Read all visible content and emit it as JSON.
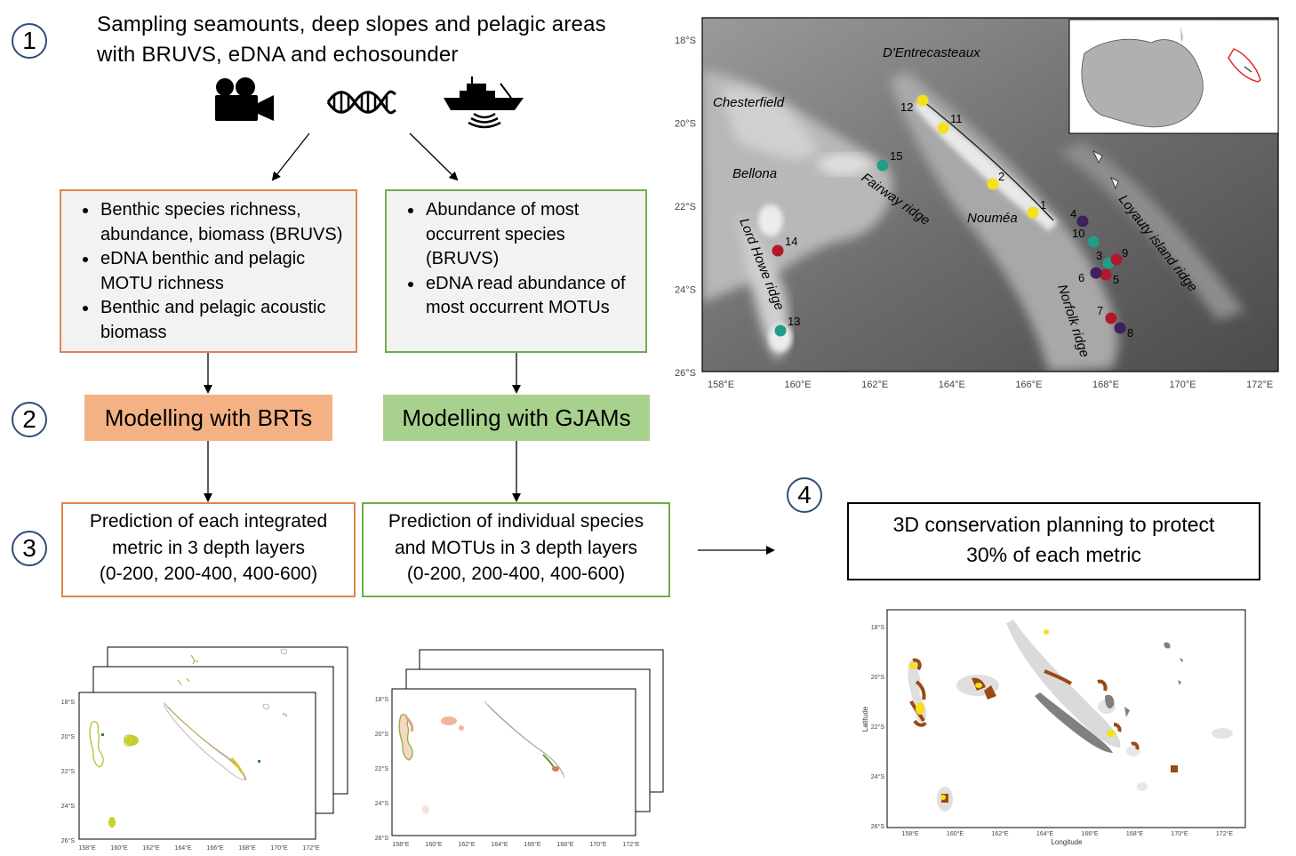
{
  "steps": [
    "1",
    "2",
    "3",
    "4"
  ],
  "header": {
    "line1": "Sampling seamounts, deep slopes and pelagic areas",
    "line2": "with BRUVS, eDNA and echosounder"
  },
  "icons": [
    "video-camera-icon",
    "dna-icon",
    "research-vessel-icon"
  ],
  "left_box": {
    "items": [
      [
        "Benthic species richness,",
        "abundance, biomass (BRUVS)"
      ],
      [
        "eDNA benthic and pelagic",
        "MOTU richness"
      ],
      [
        "Benthic and pelagic acoustic",
        "biomass"
      ]
    ]
  },
  "right_box": {
    "items": [
      [
        "Abundance of most",
        "occurrent species",
        "(BRUVS)"
      ],
      [
        "eDNA read abundance of",
        "most occurrent MOTUs"
      ]
    ]
  },
  "models": {
    "brt": "Modelling with BRTs",
    "gjam": "Modelling with GJAMs"
  },
  "predictions": {
    "left": [
      "Prediction of each integrated",
      "metric in 3 depth layers",
      "(0-200, 200-400, 400-600)"
    ],
    "right": [
      "Prediction of individual species",
      "and MOTUs in 3 depth layers",
      "(0-200, 200-400, 400-600)"
    ]
  },
  "conservation": {
    "lines": [
      "3D conservation planning to protect",
      "30% of each metric"
    ]
  },
  "colors": {
    "orange_border": "#e0864a",
    "green_border": "#70ad47",
    "orange_fill": "#f4b183",
    "green_fill": "#a9d18e",
    "step_circle": "#2f4d7a",
    "yellow": "#f5e01a",
    "teal": "#1f9e89",
    "red": "#b2182b",
    "purple": "#3f1f5e",
    "brown": "#9a4a12"
  },
  "main_map": {
    "lat_ticks": [
      "18°S",
      "20°S",
      "22°S",
      "24°S",
      "26°S"
    ],
    "lon_ticks": [
      "158°E",
      "160°E",
      "162°E",
      "164°E",
      "166°E",
      "168°E",
      "170°E",
      "172°E"
    ],
    "places": [
      "D'Entrecasteaux",
      "Chesterfield",
      "Bellona",
      "Fairway ridge",
      "Nouméa",
      "Loyauty island ridge",
      "Lord Howe ridge",
      "Norfolk ridge"
    ],
    "stations": [
      {
        "id": "1",
        "color": "yellow"
      },
      {
        "id": "2",
        "color": "yellow"
      },
      {
        "id": "11",
        "color": "yellow"
      },
      {
        "id": "12",
        "color": "yellow"
      },
      {
        "id": "15",
        "color": "teal"
      },
      {
        "id": "13",
        "color": "teal"
      },
      {
        "id": "10",
        "color": "teal"
      },
      {
        "id": "3",
        "color": "teal"
      },
      {
        "id": "14",
        "color": "red"
      },
      {
        "id": "9",
        "color": "red"
      },
      {
        "id": "5",
        "color": "red"
      },
      {
        "id": "7",
        "color": "red"
      },
      {
        "id": "4",
        "color": "purple"
      },
      {
        "id": "6",
        "color": "purple"
      },
      {
        "id": "8",
        "color": "purple"
      }
    ]
  },
  "small_map_left": {
    "lat_ticks": [
      "18°S",
      "20°S",
      "22°S",
      "24°S",
      "26°S"
    ],
    "lon_ticks": [
      "158°E",
      "160°E",
      "162°E",
      "164°E",
      "166°E",
      "168°E",
      "170°E",
      "172°E"
    ]
  },
  "small_map_mid": {
    "lat_ticks": [
      "18°S",
      "20°S",
      "22°S",
      "24°S",
      "26°S"
    ],
    "lon_ticks": [
      "158°E",
      "160°E",
      "162°E",
      "164°E",
      "166°E",
      "168°E",
      "170°E",
      "172°E"
    ]
  },
  "cons_map": {
    "lat_ticks": [
      "18°S",
      "20°S",
      "22°S",
      "24°S",
      "26°S"
    ],
    "lon_ticks": [
      "158°E",
      "160°E",
      "162°E",
      "164°E",
      "166°E",
      "168°E",
      "170°E",
      "172°E"
    ],
    "xlabel": "Longitude",
    "ylabel": "Latitude"
  }
}
